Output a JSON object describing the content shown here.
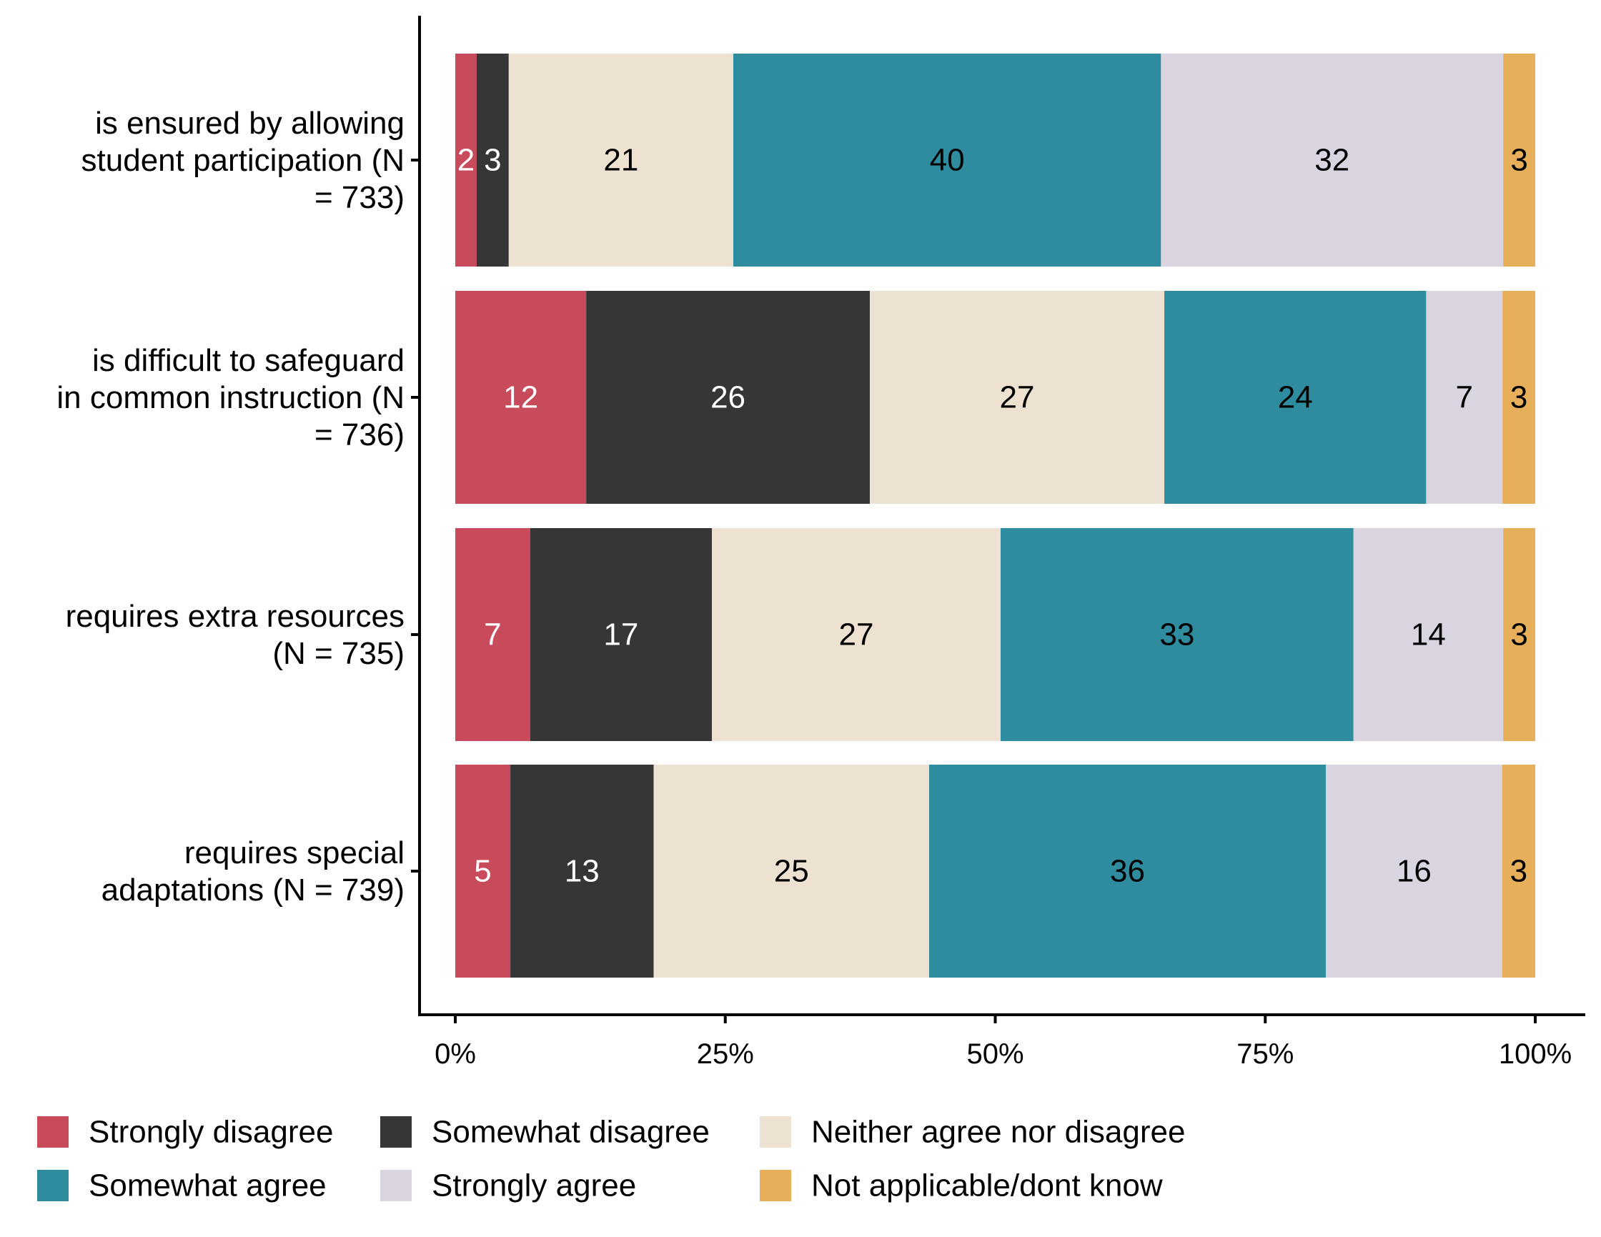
{
  "chart_data": {
    "type": "bar",
    "orientation": "horizontal",
    "stacked": true,
    "title": "",
    "xlabel": "",
    "ylabel": "",
    "xlim": [
      0,
      100
    ],
    "x_ticks": [
      "0%",
      "25%",
      "50%",
      "75%",
      "100%"
    ],
    "x_tick_values": [
      0,
      25,
      50,
      75,
      100
    ],
    "grid": false,
    "legend_position": "bottom",
    "categories": [
      [
        "is ensured by allowing",
        "student participation (N",
        "= 733)"
      ],
      [
        "is difficult to safeguard",
        "in common instruction (N",
        "= 736)"
      ],
      [
        "requires extra resources",
        "(N = 735)"
      ],
      [
        "requires special",
        "adaptations (N = 739)"
      ]
    ],
    "series": [
      {
        "name": "Strongly disagree",
        "color": "#C84B5C",
        "label_color": "#ffffff",
        "values": [
          2,
          12,
          7,
          5
        ]
      },
      {
        "name": "Somewhat disagree",
        "color": "#363636",
        "label_color": "#ffffff",
        "values": [
          3,
          26,
          17,
          13
        ]
      },
      {
        "name": "Neither agree nor disagree",
        "color": "#EDE1D1",
        "label_color": "#000000",
        "values": [
          21,
          27,
          27,
          25
        ]
      },
      {
        "name": "Somewhat agree",
        "color": "#2E8C9E",
        "label_color": "#000000",
        "values": [
          40,
          24,
          33,
          36
        ]
      },
      {
        "name": "Strongly agree",
        "color": "#DAD3E0",
        "label_color": "#000000",
        "values": [
          32,
          7,
          14,
          16
        ]
      },
      {
        "name": "Not applicable/dont know",
        "color": "#E8AF5B",
        "label_color": "#000000",
        "values": [
          3,
          3,
          3,
          3
        ]
      }
    ],
    "legend_rows": [
      [
        "Strongly disagree",
        "Somewhat disagree",
        "Neither agree nor disagree"
      ],
      [
        "Somewhat agree",
        "Strongly agree",
        "Not applicable/dont know"
      ]
    ]
  }
}
